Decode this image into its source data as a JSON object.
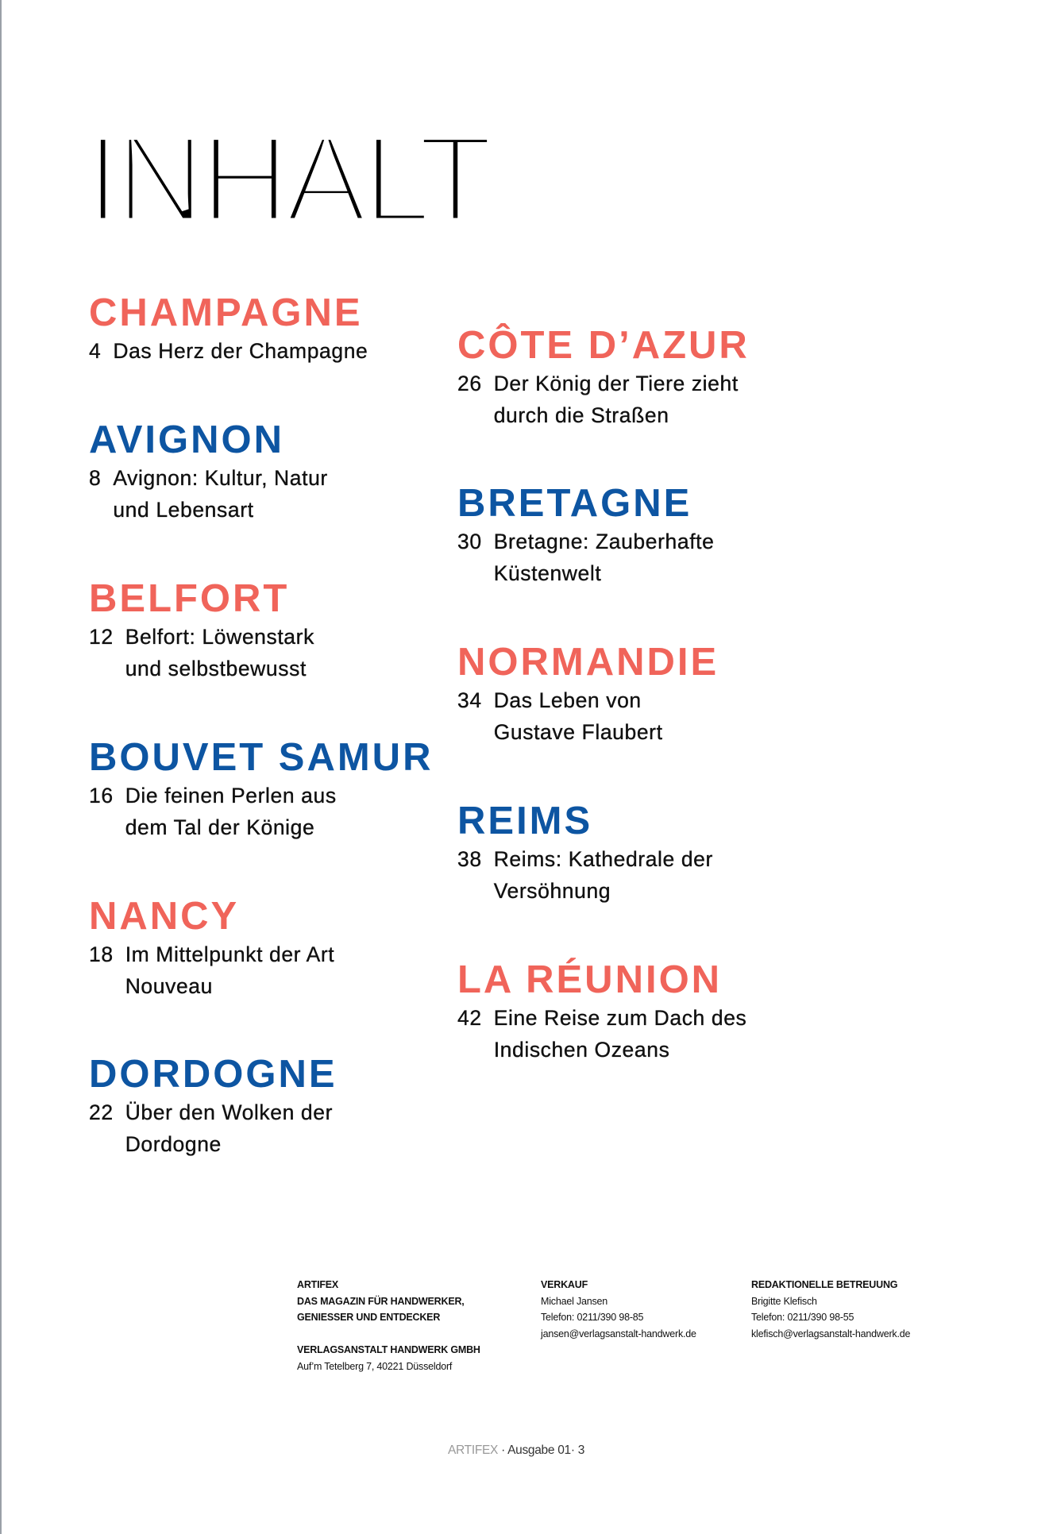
{
  "title": "INHALT",
  "colors": {
    "coral": "#f0645a",
    "blue": "#0d55a2"
  },
  "left_column": [
    {
      "heading": "CHAMPAGNE",
      "color": "coral",
      "page": "4",
      "text": "Das Herz der Champagne"
    },
    {
      "heading": "AVIGNON",
      "color": "blue",
      "page": "8",
      "text": "Avignon: Kultur, Natur und Lebensart"
    },
    {
      "heading": "BELFORT",
      "color": "coral",
      "page": "12",
      "text": "Belfort: Löwenstark und selbstbewusst"
    },
    {
      "heading": "BOUVET SAMUR",
      "color": "blue",
      "page": "16",
      "text": "Die feinen Perlen aus dem Tal der Könige"
    },
    {
      "heading": "NANCY",
      "color": "coral",
      "page": "18",
      "text": "Im Mittelpunkt der Art Nouveau"
    },
    {
      "heading": "DORDOGNE",
      "color": "blue",
      "page": "22",
      "text": "Über den Wolken der Dordogne"
    }
  ],
  "right_column": [
    {
      "heading": "CÔTE D’AZUR",
      "color": "coral",
      "page": "26",
      "text": "Der König der Tiere zieht durch die Straßen"
    },
    {
      "heading": "BRETAGNE",
      "color": "blue",
      "page": "30",
      "text": "Bretagne: Zauberhafte Küstenwelt"
    },
    {
      "heading": "NORMANDIE",
      "color": "coral",
      "page": "34",
      "text": "Das Leben von Gustave Flaubert"
    },
    {
      "heading": "REIMS",
      "color": "blue",
      "page": "38",
      "text": "Reims: Kathedrale der Versöhnung"
    },
    {
      "heading": "LA RÉUNION",
      "color": "coral",
      "page": "42",
      "text": "Eine Reise zum Dach des Indischen Ozeans"
    }
  ],
  "footer": {
    "publisher": {
      "name": "ARTIFEX",
      "tagline1": "DAS MAGAZIN FÜR HANDWERKER,",
      "tagline2": "GENIESSER UND ENTDECKER",
      "company": "VERLAGSANSTALT HANDWERK GMBH",
      "address": "Auf’m Tetelberg 7, 40221 Düsseldorf"
    },
    "sales": {
      "heading": "VERKAUF",
      "name": "Michael Jansen",
      "phone": "Telefon: 0211/390 98-85",
      "email": "jansen@verlagsanstalt-handwerk.de"
    },
    "editorial": {
      "heading": "REDAKTIONELLE BETREUUNG",
      "name": "Brigitte Klefisch",
      "phone": "Telefon: 0211/390 98-55",
      "email": "klefisch@verlagsanstalt-handwerk.de"
    }
  },
  "page_footer": {
    "brand": "ARTIFEX",
    "issue": " · Ausgabe 01· 3"
  }
}
